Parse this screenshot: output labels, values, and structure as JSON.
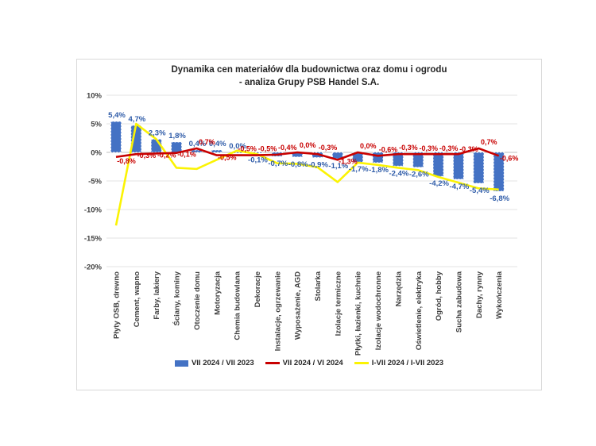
{
  "chart_data": {
    "type": "combo-bar-line",
    "title_line1": "Dynamika cen materiałów dla budownictwa oraz domu i ogrodu",
    "title_line2": "- analiza Grupy PSB Handel S.A.",
    "categories": [
      "Płyty OSB, drewno",
      "Cement, wapno",
      "Farby, lakiery",
      "Ściany, kominy",
      "Otoczenie domu",
      "Motoryzacja",
      "Chemia budowlana",
      "Dekoracje",
      "Instalacje, ogrzewanie",
      "Wyposażenie, AGD",
      "Stolarka",
      "Izolacje termiczne",
      "Płytki, łazienki, kuchnie",
      "Izolacje wodochronne",
      "Narzędzia",
      "Oświetlenie, elektryka",
      "Ogród, hobby",
      "Sucha zabudowa",
      "Dachy, rynny",
      "Wykończenia"
    ],
    "series": [
      {
        "name": "VII 2024 / VII 2023",
        "type": "bar",
        "color": "#4472C4",
        "label_color": "#2E5BA8",
        "values": [
          5.4,
          4.7,
          2.3,
          1.8,
          0.4,
          0.4,
          0.0,
          -0.1,
          -0.7,
          -0.8,
          -0.9,
          -1.1,
          -1.7,
          -1.8,
          -2.4,
          -2.6,
          -4.2,
          -4.7,
          -5.4,
          -6.8
        ],
        "labels": [
          "5,4%",
          "4,7%",
          "2,3%",
          "1,8%",
          "0,4%",
          "0,4%",
          "0,0%",
          "-0,1%",
          "-0,7%",
          "-0,8%",
          "-0,9%",
          "-1,1%",
          "-1,7%",
          "-1,8%",
          "-2,4%",
          "-2,6%",
          "-4,2%",
          "-4,7%",
          "-5,4%",
          "-6,8%"
        ]
      },
      {
        "name": "VII 2024 / VI 2024",
        "type": "line",
        "color": "#C80000",
        "label_color": "#C80000",
        "values": [
          -0.8,
          -0.3,
          -0.2,
          -0.1,
          0.7,
          -0.5,
          -0.5,
          -0.5,
          -0.4,
          0.0,
          -0.3,
          -1.3,
          0.0,
          -0.6,
          -0.3,
          -0.3,
          -0.3,
          -0.3,
          0.7,
          -0.6
        ],
        "labels": [
          "-0,8%",
          "-0,3%",
          "-0,2%",
          "-0,1%",
          "0,7%",
          "-0,5%",
          "-0,5%",
          "-0,5%",
          "-0,4%",
          "0,0%",
          "-0,3%",
          "-1,3%",
          "0,0%",
          "-0,6%",
          "-0,3%",
          "-0,3%",
          "-0,3%",
          "-0,3%",
          "0,7%",
          "-0,6%"
        ]
      },
      {
        "name": "I-VII 2024 / I-VII 2023",
        "type": "line",
        "color": "#FBF303",
        "label_color": null,
        "values": [
          -12.8,
          5.0,
          2.3,
          -2.7,
          -2.9,
          -1.3,
          0.3,
          -0.3,
          -1.9,
          -2.0,
          -2.6,
          -5.2,
          -1.8,
          -2.2,
          -2.7,
          -3.1,
          -4.3,
          -5.3,
          -6.3,
          -6.5
        ],
        "labels": null
      }
    ],
    "ylim": [
      -20,
      10
    ],
    "y_tick_values": [
      10,
      5,
      0,
      -5,
      -10,
      -15,
      -20
    ],
    "y_tick_labels": [
      "10%",
      "5%",
      "0%",
      "-5%",
      "-10%",
      "-15%",
      "-20%"
    ],
    "grid": true,
    "legend_position": "bottom"
  }
}
